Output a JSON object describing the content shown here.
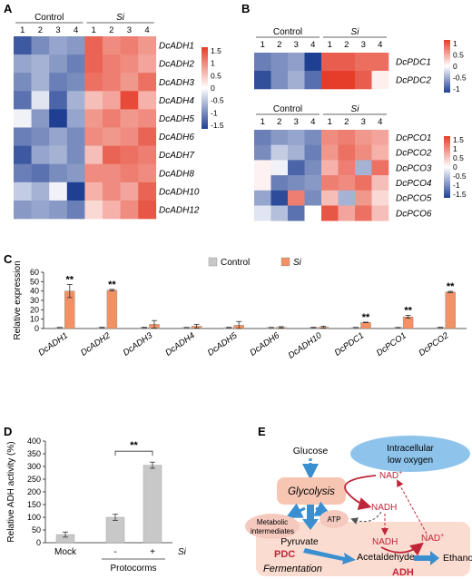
{
  "panels": {
    "A": "A",
    "B": "B",
    "C": "C",
    "D": "D",
    "E": "E"
  },
  "colors": {
    "low": "#1f3f93",
    "mid": "#ffffff",
    "high": "#e53d2a",
    "control_bar": "#c8c8c8",
    "si_bar": "#f19164",
    "process_box": "#f7c6b3",
    "fermentation_bg": "#fbdcd0",
    "blue_arrow": "#3a8fd0",
    "nad_red": "#c0263a",
    "low_oxygen": "#7fb8e6"
  },
  "chart_data": [
    {
      "type": "heatmap",
      "panel": "A",
      "groups": [
        {
          "name": "Control",
          "cols": [
            "1",
            "2",
            "3",
            "4"
          ]
        },
        {
          "name": "Si",
          "cols": [
            "1",
            "2",
            "3",
            "4"
          ]
        }
      ],
      "rows": [
        "DcADH1",
        "DcADH2",
        "DcADH3",
        "DcADH4",
        "DcADH5",
        "DcADH6",
        "DcADH7",
        "DcADH8",
        "DcADH10",
        "DcADH12"
      ],
      "values": [
        [
          -1.3,
          -0.9,
          -0.7,
          -0.8,
          1.2,
          0.9,
          1.0,
          0.8
        ],
        [
          -0.7,
          -0.6,
          -0.8,
          -1.0,
          1.2,
          1.0,
          0.9,
          0.7
        ],
        [
          -0.9,
          -0.6,
          -1.0,
          -0.9,
          1.1,
          1.0,
          0.8,
          1.1
        ],
        [
          -1.1,
          -0.2,
          -1.2,
          -0.6,
          0.5,
          0.7,
          1.4,
          0.6
        ],
        [
          -0.1,
          -0.8,
          -1.7,
          -0.7,
          0.8,
          1.0,
          0.8,
          0.9
        ],
        [
          -1.0,
          -0.9,
          -0.7,
          -0.9,
          0.9,
          0.8,
          0.9,
          1.2
        ],
        [
          -1.3,
          -0.7,
          -0.6,
          -0.9,
          0.5,
          1.2,
          1.1,
          1.0
        ],
        [
          -1.0,
          -1.1,
          -0.9,
          -0.8,
          0.9,
          0.9,
          1.0,
          0.9
        ],
        [
          -0.4,
          -0.6,
          -0.1,
          -1.5,
          0.6,
          0.9,
          0.7,
          1.2
        ],
        [
          -0.8,
          -0.7,
          -0.8,
          -1.0,
          0.3,
          0.6,
          0.9,
          1.3
        ]
      ],
      "scale_ticks": [
        "1.5",
        "1",
        "0.5",
        "0",
        "-0.5",
        "-1",
        "-1.5"
      ],
      "range": [
        -1.5,
        1.5
      ]
    },
    {
      "type": "heatmap",
      "panel": "B",
      "groups": [
        {
          "name": "Control",
          "cols": [
            "1",
            "2",
            "3",
            "4"
          ]
        },
        {
          "name": "Si",
          "cols": [
            "1",
            "2",
            "3",
            "4"
          ]
        }
      ],
      "rows": [
        "DcPDC1",
        "DcPDC2"
      ],
      "values": [
        [
          -0.8,
          -0.7,
          -0.6,
          -1.2,
          1.0,
          1.0,
          0.9,
          0.9
        ],
        [
          -1.1,
          -0.7,
          -0.5,
          -0.9,
          1.4,
          1.3,
          1.0,
          0.1
        ]
      ],
      "scale_ticks": [
        "1",
        "0.5",
        "0",
        "-0.5",
        "-1"
      ],
      "range": [
        -1.2,
        1.2
      ]
    },
    {
      "type": "heatmap",
      "panel": "B",
      "groups": [
        {
          "name": "Control",
          "cols": [
            "1",
            "2",
            "3",
            "4"
          ]
        },
        {
          "name": "Si",
          "cols": [
            "1",
            "2",
            "3",
            "4"
          ]
        }
      ],
      "rows": [
        "DcPCO1",
        "DcPCO2",
        "DcPCO3",
        "DcPCO4",
        "DcPCO5",
        "DcPCO6"
      ],
      "values": [
        [
          -1.0,
          -0.8,
          -0.7,
          -0.9,
          0.9,
          1.0,
          0.8,
          0.7
        ],
        [
          -0.9,
          -0.4,
          -0.6,
          -1.0,
          0.8,
          1.1,
          0.9,
          0.6
        ],
        [
          0.1,
          -0.1,
          -1.2,
          -0.9,
          0.6,
          1.0,
          -0.6,
          1.1
        ],
        [
          0.1,
          -1.0,
          -0.9,
          -0.8,
          1.0,
          0.9,
          1.1,
          0.5
        ],
        [
          -0.7,
          -1.4,
          1.0,
          -0.9,
          0.5,
          -0.6,
          0.8,
          0.3
        ],
        [
          -0.2,
          -0.5,
          -1.1,
          0.0,
          1.3,
          0.7,
          1.1,
          0.5
        ]
      ],
      "scale_ticks": [
        "1.5",
        "1",
        "0.5",
        "0",
        "-0.5",
        "-1",
        "-1.5"
      ],
      "range": [
        -1.5,
        1.5
      ]
    },
    {
      "type": "bar",
      "panel": "C",
      "categories": [
        "DcADH1",
        "DcADH2",
        "DcADH3",
        "DcADH4",
        "DcADH5",
        "DcADH6",
        "DcADH10",
        "DcPDC1",
        "DcPCO1",
        "DcPCO2"
      ],
      "series": [
        {
          "name": "Control",
          "values": [
            1,
            1,
            1,
            1,
            1,
            1,
            1,
            1,
            1,
            1
          ],
          "errors": [
            0.2,
            0.3,
            0.3,
            0.2,
            0.3,
            0.2,
            0.3,
            0.2,
            0.2,
            0.3
          ]
        },
        {
          "name": "Si",
          "values": [
            40,
            41,
            4.5,
            2.5,
            3.5,
            1.2,
            1.5,
            6.5,
            12.5,
            39
          ],
          "errors": [
            7,
            0.8,
            4,
            2,
            4,
            0.8,
            1,
            0.3,
            1.5,
            0.7
          ]
        }
      ],
      "significance": [
        "**",
        "**",
        "",
        "",
        "",
        "",
        "",
        "**",
        "**",
        "**"
      ],
      "ylabel": "Relative expression",
      "ylim": [
        0,
        60
      ],
      "yticks": [
        0,
        10,
        20,
        30,
        40,
        50,
        60
      ]
    },
    {
      "type": "bar",
      "panel": "D",
      "categories": [
        "Mock",
        "-",
        "+"
      ],
      "values": [
        32,
        100,
        305
      ],
      "errors": [
        10,
        12,
        12
      ],
      "ylabel": "Relative ADH activity (%)",
      "ylim": [
        0,
        400
      ],
      "yticks": [
        0,
        50,
        100,
        150,
        200,
        250,
        300,
        350,
        400
      ],
      "significance": "**",
      "group_label": "Protocorms",
      "treatment_label": "Si"
    }
  ],
  "pathway": {
    "low_oxygen_line1": "Intracellular",
    "low_oxygen_line2": "low oxygen",
    "glucose": "Glucose",
    "glycolysis": "Glycolysis",
    "nad_plus": "NAD",
    "nad_plus_sup": "+",
    "nadh": "NADH",
    "metabolic_line1": "Metabolic",
    "metabolic_line2": "intermediates",
    "atp": "ATP",
    "pyruvate": "Pyruvate",
    "pdc": "PDC",
    "acetaldehyde": "Acetaldehyde",
    "ethanol": "Ethanol",
    "adh": "ADH",
    "fermentation": "Fermentation"
  }
}
